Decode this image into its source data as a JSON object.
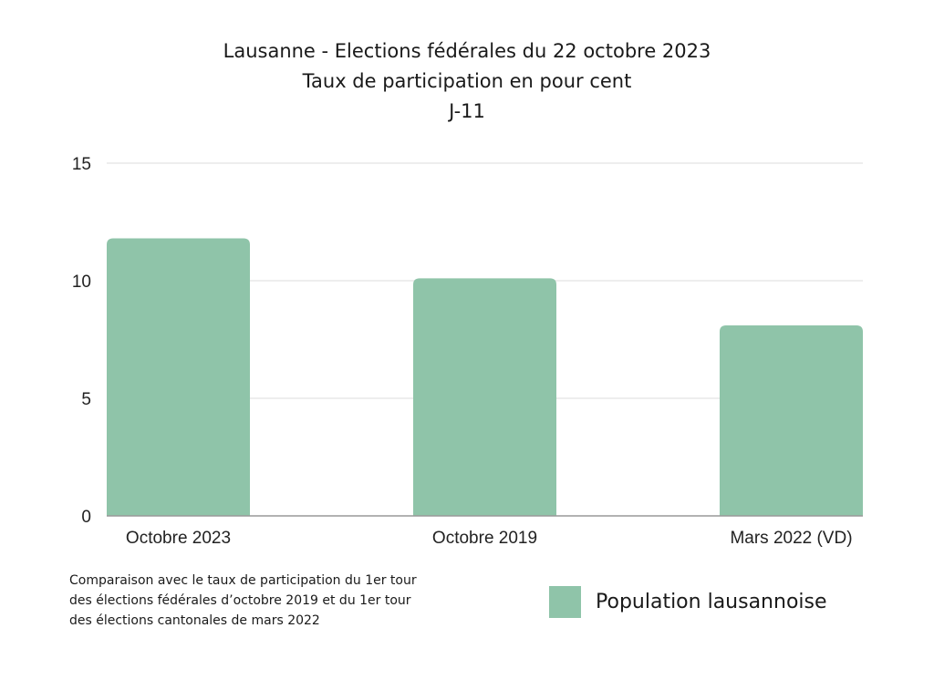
{
  "chart_data": {
    "type": "bar",
    "title": "Lausanne - Elections fédérales du 22 octobre 2023",
    "subtitle": "Taux de participation en pour cent",
    "subtitle2": "J-11",
    "categories": [
      "Octobre 2023",
      "Octobre 2019",
      "Mars 2022 (VD)"
    ],
    "series": [
      {
        "name": "Population lausannoise",
        "values": [
          11.8,
          10.1,
          8.1
        ],
        "color": "#8fc4a9"
      }
    ],
    "ylim": [
      0,
      15
    ],
    "yticks": [
      0,
      5,
      10,
      15
    ],
    "grid": true,
    "legend_position": "bottom-right"
  },
  "footnote": {
    "lines": [
      "Comparaison avec le taux de participation du 1er tour",
      "des élections fédérales d’octobre 2019 et du 1er tour",
      "des élections cantonales de mars 2022"
    ]
  }
}
